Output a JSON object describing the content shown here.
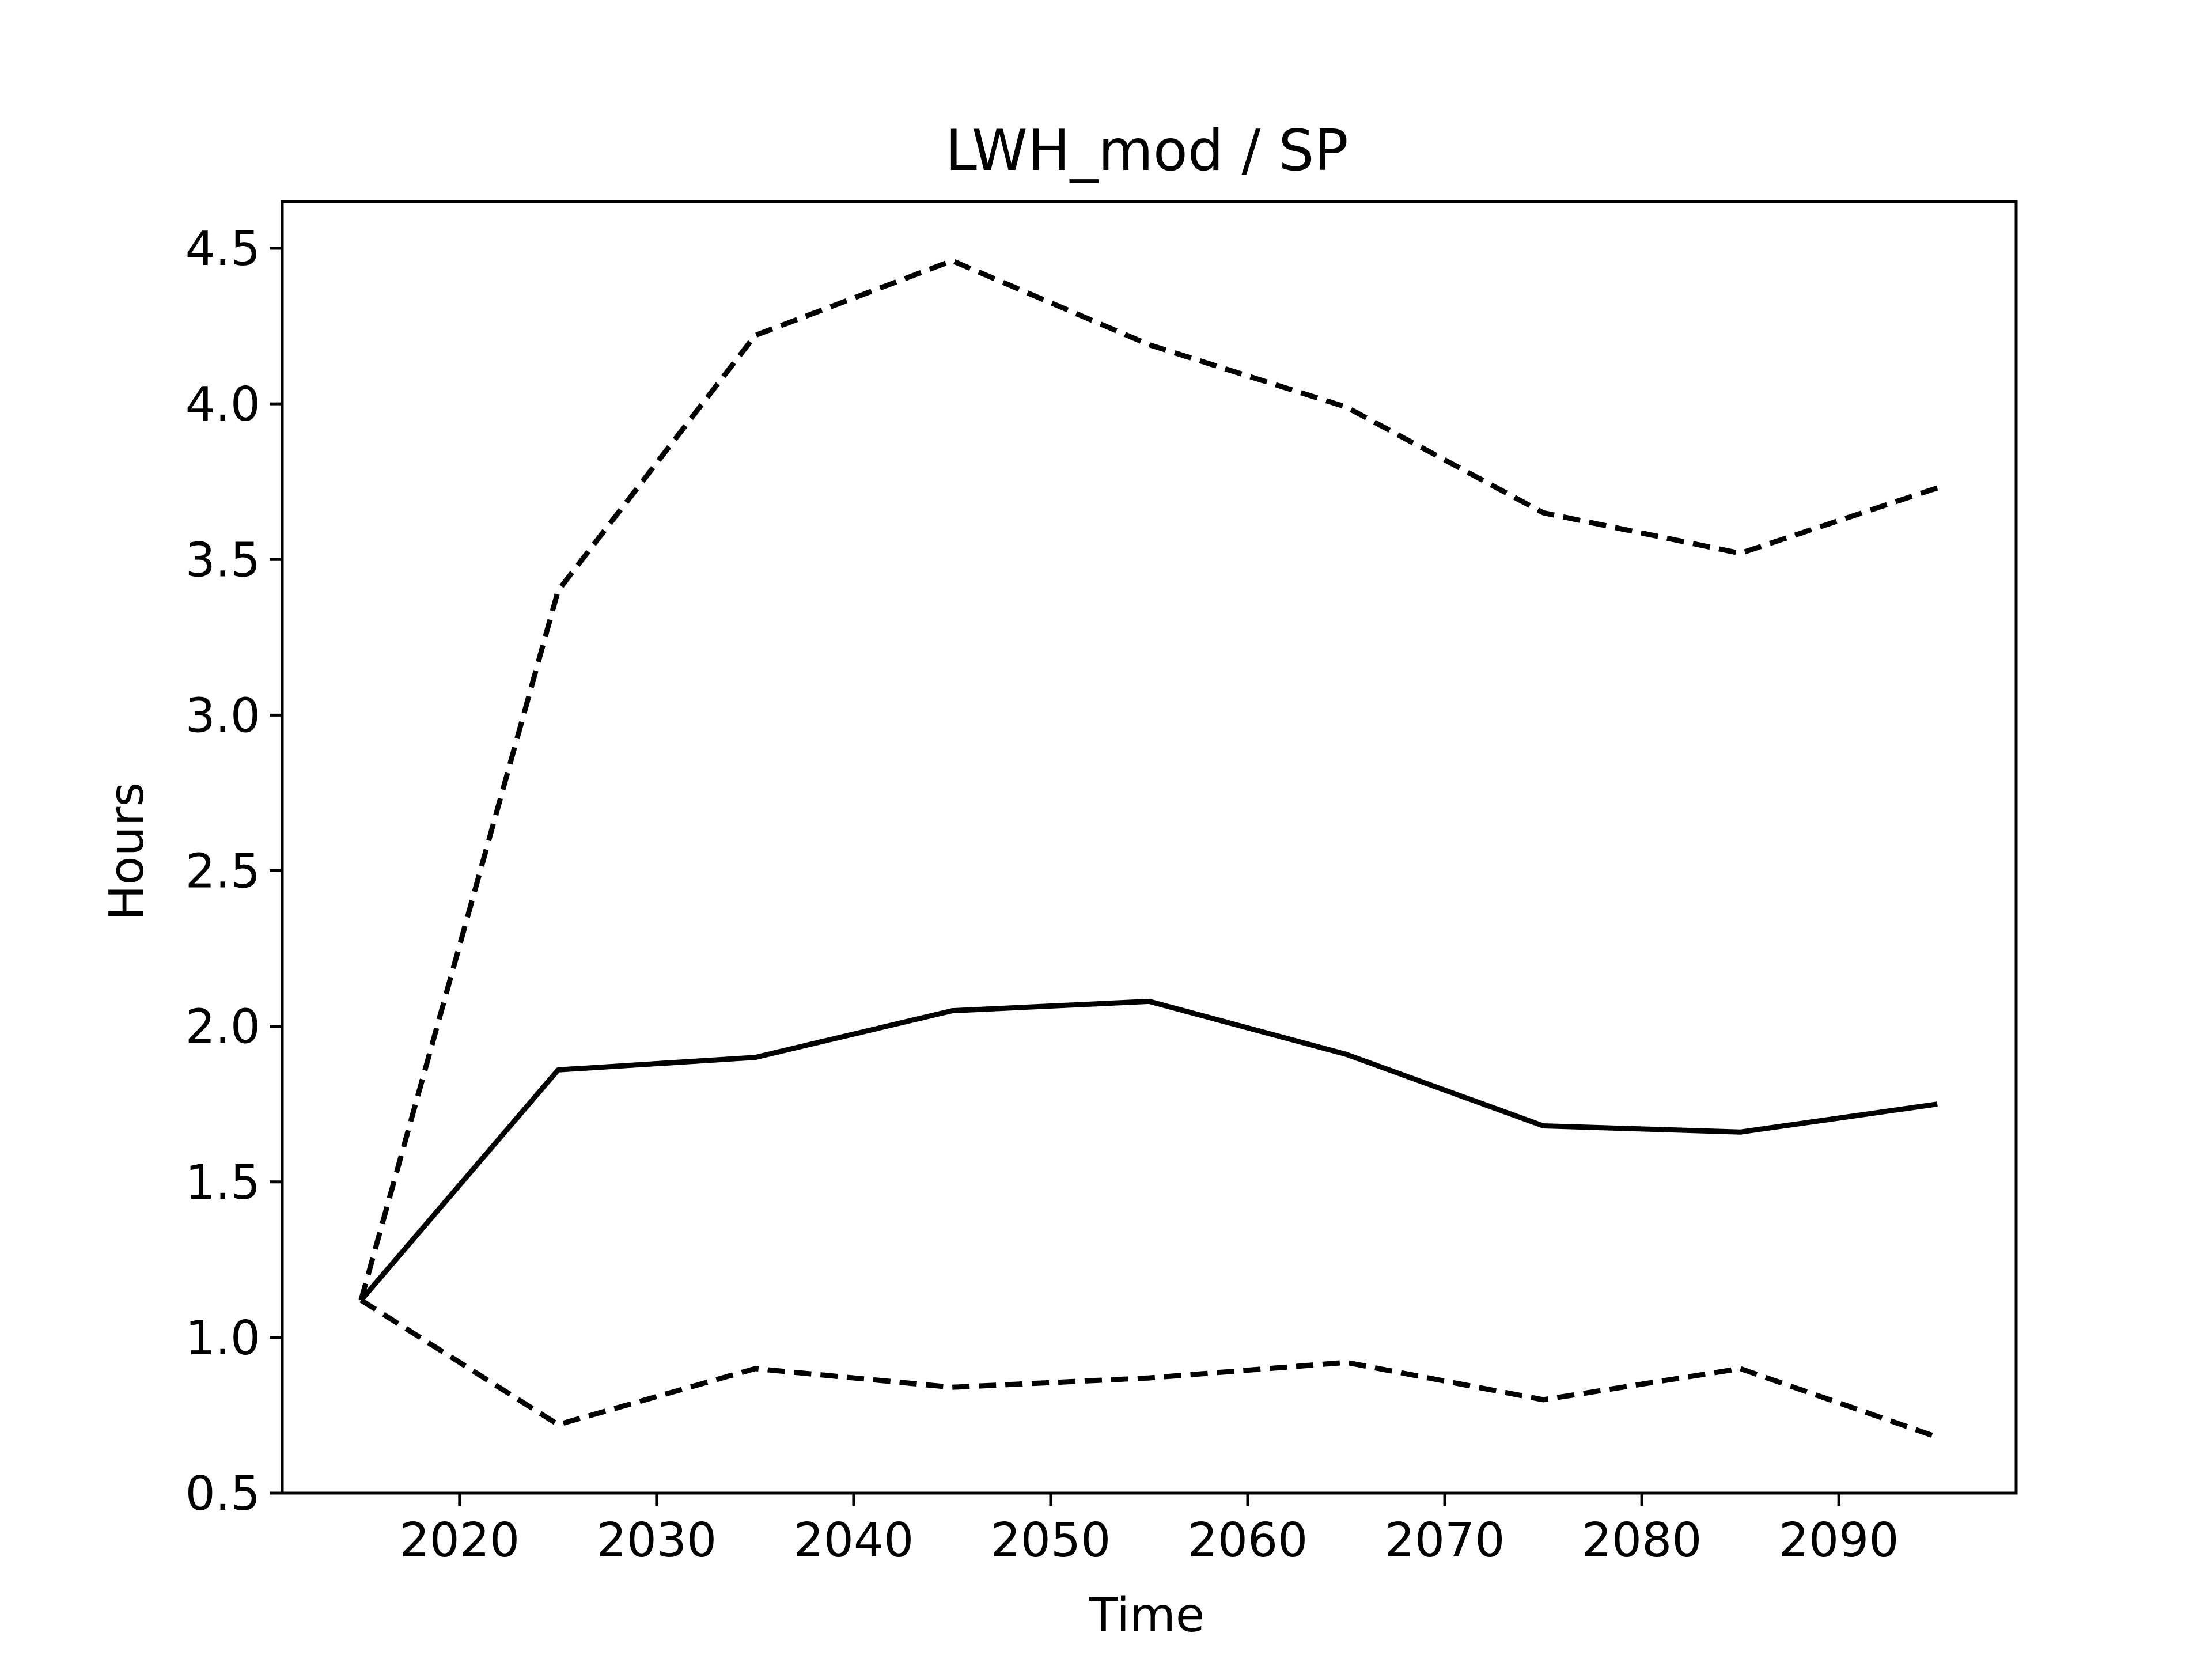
{
  "chart_data": {
    "type": "line",
    "title": "LWH_mod / SP",
    "xlabel": "Time",
    "ylabel": "Hours",
    "xlim": [
      2011,
      2099
    ],
    "ylim": [
      0.5,
      4.65
    ],
    "xticks": [
      2020,
      2030,
      2040,
      2050,
      2060,
      2070,
      2080,
      2090
    ],
    "yticks": [
      0.5,
      1.0,
      1.5,
      2.0,
      2.5,
      3.0,
      3.5,
      4.0,
      4.5
    ],
    "grid": false,
    "legend": "none",
    "x": [
      2015,
      2025,
      2035,
      2045,
      2055,
      2065,
      2075,
      2085,
      2095
    ],
    "series": [
      {
        "style": "solid",
        "color": "#000000",
        "values": [
          1.12,
          1.86,
          1.9,
          2.05,
          2.08,
          1.91,
          1.68,
          1.66,
          1.75
        ]
      },
      {
        "style": "dashed",
        "color": "#000000",
        "values": [
          1.12,
          3.4,
          4.22,
          4.46,
          4.19,
          3.99,
          3.65,
          3.52,
          3.73
        ]
      },
      {
        "style": "dashed",
        "color": "#000000",
        "values": [
          1.12,
          0.72,
          0.9,
          0.84,
          0.87,
          0.92,
          0.8,
          0.9,
          0.68
        ]
      }
    ]
  }
}
